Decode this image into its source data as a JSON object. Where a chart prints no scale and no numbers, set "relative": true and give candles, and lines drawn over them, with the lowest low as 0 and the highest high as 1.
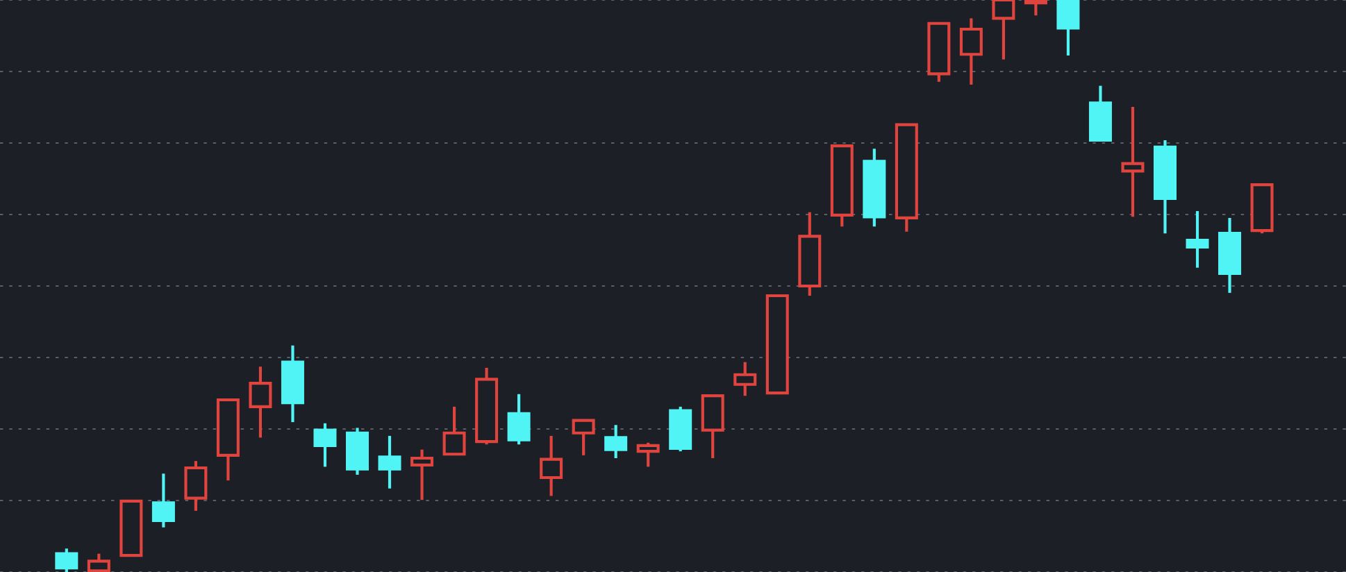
{
  "chart_data": {
    "type": "candlestick",
    "relative": true,
    "grid": "y",
    "categories": [
      null,
      null,
      null,
      null,
      null,
      null,
      null,
      null,
      null,
      null,
      null,
      null,
      null,
      null,
      null,
      null,
      null,
      null,
      null,
      null,
      null,
      null,
      null,
      null,
      null,
      null,
      null,
      null,
      null,
      null,
      null,
      null,
      null,
      null,
      null,
      null,
      null,
      null
    ],
    "series": [
      {
        "colors": [
          "#50f4f4",
          "#e0443e",
          "#e0443e",
          "#50f4f4",
          "#e0443e",
          "#e0443e",
          "#e0443e",
          "#50f4f4",
          "#50f4f4",
          "#50f4f4",
          "#50f4f4",
          "#e0443e",
          "#e0443e",
          "#e0443e",
          "#50f4f4",
          "#e0443e",
          "#e0443e",
          "#50f4f4",
          "#e0443e",
          "#50f4f4",
          "#e0443e",
          "#e0443e",
          "#e0443e",
          "#e0443e",
          "#e0443e",
          "#50f4f4",
          "#e0443e",
          "#e0443e",
          "#e0443e",
          "#e0443e",
          "#e0443e",
          "#50f4f4",
          "#50f4f4",
          "#e0443e",
          "#50f4f4",
          "#50f4f4",
          "#50f4f4",
          "#e0443e"
        ],
        "ohlc": [
          [
            0.032,
            0.041,
            0,
            0.007
          ],
          [
            0.002,
            0.032,
            0,
            0.019
          ],
          [
            0.029,
            0.124,
            0.027,
            0.124
          ],
          [
            0.121,
            0.172,
            0.078,
            0.09
          ],
          [
            0.129,
            0.194,
            0.107,
            0.182
          ],
          [
            0.204,
            0.301,
            0.16,
            0.301
          ],
          [
            0.289,
            0.359,
            0.235,
            0.33
          ],
          [
            0.367,
            0.396,
            0.262,
            0.296
          ],
          [
            0.248,
            0.26,
            0.184,
            0.221
          ],
          [
            0.243,
            0.252,
            0.17,
            0.18
          ],
          [
            0.201,
            0.238,
            0.146,
            0.18
          ],
          [
            0.187,
            0.214,
            0.126,
            0.199
          ],
          [
            0.206,
            0.289,
            0.204,
            0.243
          ],
          [
            0.228,
            0.357,
            0.223,
            0.337
          ],
          [
            0.277,
            0.311,
            0.223,
            0.231
          ],
          [
            0.165,
            0.238,
            0.133,
            0.197
          ],
          [
            0.243,
            0.267,
            0.204,
            0.265
          ],
          [
            0.235,
            0.257,
            0.199,
            0.214
          ],
          [
            0.211,
            0.226,
            0.184,
            0.221
          ],
          [
            0.282,
            0.289,
            0.211,
            0.216
          ],
          [
            0.248,
            0.308,
            0.199,
            0.308
          ],
          [
            0.328,
            0.367,
            0.308,
            0.345
          ],
          [
            0.313,
            0.483,
            0.311,
            0.483
          ],
          [
            0.5,
            0.629,
            0.483,
            0.587
          ],
          [
            0.624,
            0.745,
            0.604,
            0.745
          ],
          [
            0.718,
            0.74,
            0.604,
            0.621
          ],
          [
            0.619,
            0.782,
            0.595,
            0.782
          ],
          [
            0.871,
            0.959,
            0.857,
            0.959
          ],
          [
            0.905,
            0.968,
            0.852,
            0.949
          ],
          [
            0.968,
            1,
            0.896,
            1
          ],
          [
            0.995,
            1,
            0.973,
            1
          ],
          [
            1,
            1,
            0.903,
            0.951
          ],
          [
            0.82,
            0.85,
            0.755,
            0.755
          ],
          [
            0.701,
            0.813,
            0.621,
            0.714
          ],
          [
            0.743,
            0.755,
            0.592,
            0.653
          ],
          [
            0.58,
            0.631,
            0.532,
            0.568
          ],
          [
            0.592,
            0.619,
            0.488,
            0.522
          ],
          [
            0.597,
            0.677,
            0.592,
            0.677
          ]
        ]
      }
    ]
  }
}
